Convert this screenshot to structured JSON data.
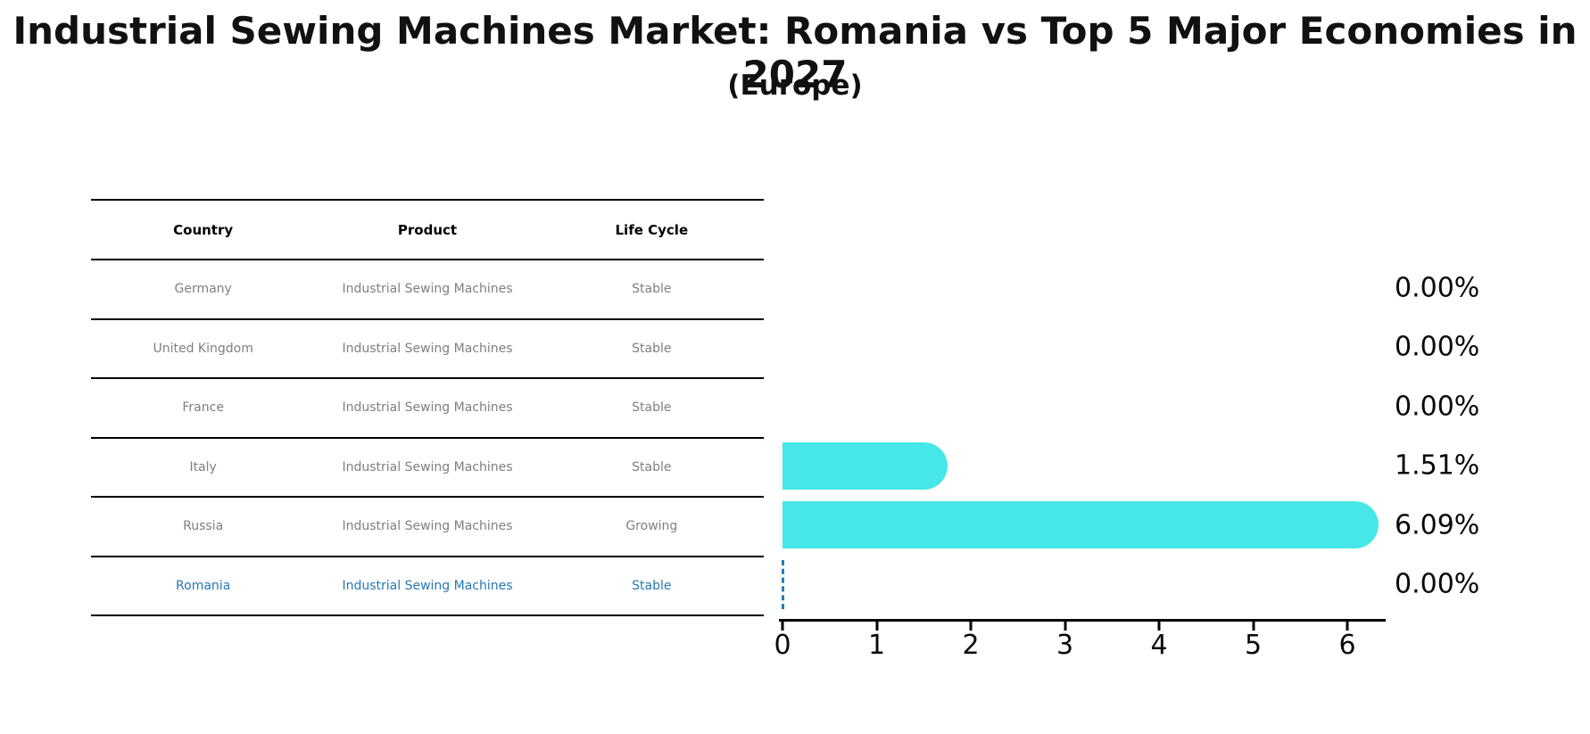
{
  "title": "Industrial Sewing Machines Market: Romania vs Top 5 Major Economies in 2027",
  "subtitle": "(Europe)",
  "table": {
    "headers": [
      "Country",
      "Product",
      "Life Cycle"
    ],
    "rows": [
      {
        "country": "Germany",
        "product": "Industrial Sewing Machines",
        "life_cycle": "Stable",
        "highlight": false
      },
      {
        "country": "United Kingdom",
        "product": "Industrial Sewing Machines",
        "life_cycle": "Stable",
        "highlight": false
      },
      {
        "country": "France",
        "product": "Industrial Sewing Machines",
        "life_cycle": "Stable",
        "highlight": false
      },
      {
        "country": "Italy",
        "product": "Industrial Sewing Machines",
        "life_cycle": "Stable",
        "highlight": false
      },
      {
        "country": "Russia",
        "product": "Industrial Sewing Machines",
        "life_cycle": "Growing",
        "highlight": false
      },
      {
        "country": "Romania",
        "product": "Industrial Sewing Machines",
        "life_cycle": "Stable",
        "highlight": true
      }
    ]
  },
  "chart_data": {
    "type": "bar",
    "orientation": "horizontal",
    "title": "Industrial Sewing Machines Market: Romania vs Top 5 Major Economies in 2027 (Europe)",
    "categories": [
      "Germany",
      "United Kingdom",
      "France",
      "Italy",
      "Russia",
      "Romania"
    ],
    "values": [
      0.0,
      0.0,
      0.0,
      1.51,
      6.09,
      0.0
    ],
    "value_labels": [
      "0.00%",
      "0.00%",
      "0.00%",
      "1.51%",
      "6.09%",
      "0.00%"
    ],
    "xlabel": "",
    "ylabel": "",
    "xticks": [
      0,
      1,
      2,
      3,
      4,
      5,
      6
    ],
    "xlim": [
      0,
      6.4
    ],
    "grid": false,
    "legend": false,
    "highlight_index": 5,
    "bar_color": "#46e7e6",
    "highlight_color": "#2878b5"
  }
}
